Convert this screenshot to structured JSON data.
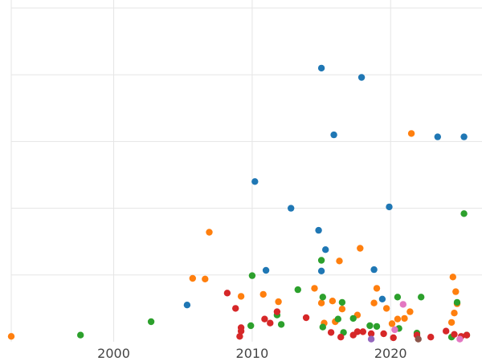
{
  "chart_data": {
    "type": "scatter",
    "title": "",
    "xlabel": "",
    "ylabel": "",
    "xlim": [
      1992.6,
      2026.6
    ],
    "ylim": [
      0,
      5.12
    ],
    "x_ticks": [
      2000,
      2010,
      2020
    ],
    "x_tick_labels": [
      "2000",
      "2010",
      "2020"
    ],
    "y_grid": [
      1,
      2,
      3,
      4,
      5
    ],
    "grid": true,
    "legend": "none",
    "series": [
      {
        "color": "#1f77b4",
        "points": [
          [
            2015.0,
            4.1
          ],
          [
            2017.9,
            3.96
          ],
          [
            2015.9,
            3.1
          ],
          [
            2023.4,
            3.07
          ],
          [
            2025.3,
            3.07
          ],
          [
            2010.2,
            2.4
          ],
          [
            2012.8,
            2.0
          ],
          [
            2019.9,
            2.02
          ],
          [
            2014.8,
            1.67
          ],
          [
            2015.3,
            1.38
          ],
          [
            2011.0,
            1.07
          ],
          [
            2015.0,
            1.06
          ],
          [
            2018.8,
            1.08
          ],
          [
            2005.3,
            0.55
          ],
          [
            2019.4,
            0.64
          ]
        ]
      },
      {
        "color": "#ff7f0e",
        "points": [
          [
            1992.6,
            0.08
          ],
          [
            2021.5,
            3.12
          ],
          [
            2006.9,
            1.64
          ],
          [
            2017.8,
            1.4
          ],
          [
            2016.3,
            1.21
          ],
          [
            2005.7,
            0.95
          ],
          [
            2006.6,
            0.94
          ],
          [
            2024.5,
            0.97
          ],
          [
            2019.0,
            0.8
          ],
          [
            2014.5,
            0.8
          ],
          [
            2010.8,
            0.71
          ],
          [
            2024.7,
            0.75
          ],
          [
            2009.2,
            0.68
          ],
          [
            2011.9,
            0.6
          ],
          [
            2015.8,
            0.61
          ],
          [
            2018.8,
            0.58
          ],
          [
            2015.0,
            0.58
          ],
          [
            2024.8,
            0.57
          ],
          [
            2016.5,
            0.49
          ],
          [
            2019.7,
            0.5
          ],
          [
            2024.6,
            0.43
          ],
          [
            2021.4,
            0.45
          ],
          [
            2017.6,
            0.4
          ],
          [
            2020.5,
            0.34
          ],
          [
            2021.0,
            0.35
          ],
          [
            2015.2,
            0.28
          ],
          [
            2016.0,
            0.3
          ],
          [
            2024.4,
            0.29
          ],
          [
            2020.1,
            0.27
          ]
        ]
      },
      {
        "color": "#2ca02c",
        "points": [
          [
            1997.6,
            0.1
          ],
          [
            2002.7,
            0.3
          ],
          [
            2025.3,
            1.92
          ],
          [
            2015.0,
            1.22
          ],
          [
            2010.0,
            0.99
          ],
          [
            2013.3,
            0.78
          ],
          [
            2015.1,
            0.67
          ],
          [
            2016.5,
            0.59
          ],
          [
            2020.5,
            0.67
          ],
          [
            2022.2,
            0.67
          ],
          [
            2024.8,
            0.59
          ],
          [
            2011.8,
            0.4
          ],
          [
            2017.3,
            0.35
          ],
          [
            2016.2,
            0.34
          ],
          [
            2009.9,
            0.24
          ],
          [
            2012.1,
            0.26
          ],
          [
            2015.1,
            0.22
          ],
          [
            2018.5,
            0.24
          ],
          [
            2019.0,
            0.23
          ],
          [
            2020.6,
            0.2
          ],
          [
            2016.6,
            0.14
          ],
          [
            2021.9,
            0.13
          ],
          [
            2024.4,
            0.07
          ],
          [
            2025.5,
            0.1
          ]
        ]
      },
      {
        "color": "#d62728",
        "points": [
          [
            2008.2,
            0.73
          ],
          [
            2008.8,
            0.5
          ],
          [
            2011.8,
            0.45
          ],
          [
            2013.9,
            0.36
          ],
          [
            2010.9,
            0.34
          ],
          [
            2011.3,
            0.28
          ],
          [
            2009.2,
            0.21
          ],
          [
            2009.2,
            0.16
          ],
          [
            2009.1,
            0.08
          ],
          [
            2015.7,
            0.14
          ],
          [
            2016.4,
            0.07
          ],
          [
            2017.3,
            0.1
          ],
          [
            2017.6,
            0.15
          ],
          [
            2018.0,
            0.15
          ],
          [
            2018.6,
            0.12
          ],
          [
            2019.5,
            0.12
          ],
          [
            2020.2,
            0.06
          ],
          [
            2021.9,
            0.1
          ],
          [
            2022.9,
            0.07
          ],
          [
            2024.0,
            0.16
          ],
          [
            2024.6,
            0.11
          ],
          [
            2025.1,
            0.08
          ],
          [
            2025.5,
            0.1
          ]
        ]
      },
      {
        "color": "#9467bd",
        "points": [
          [
            2018.6,
            0.04
          ]
        ]
      },
      {
        "color": "#8c564b",
        "points": [
          [
            2022.0,
            0.04
          ]
        ]
      },
      {
        "color": "#e377c2",
        "points": [
          [
            2020.9,
            0.56
          ],
          [
            2020.3,
            0.18
          ],
          [
            2025.0,
            0.04
          ]
        ]
      }
    ]
  }
}
